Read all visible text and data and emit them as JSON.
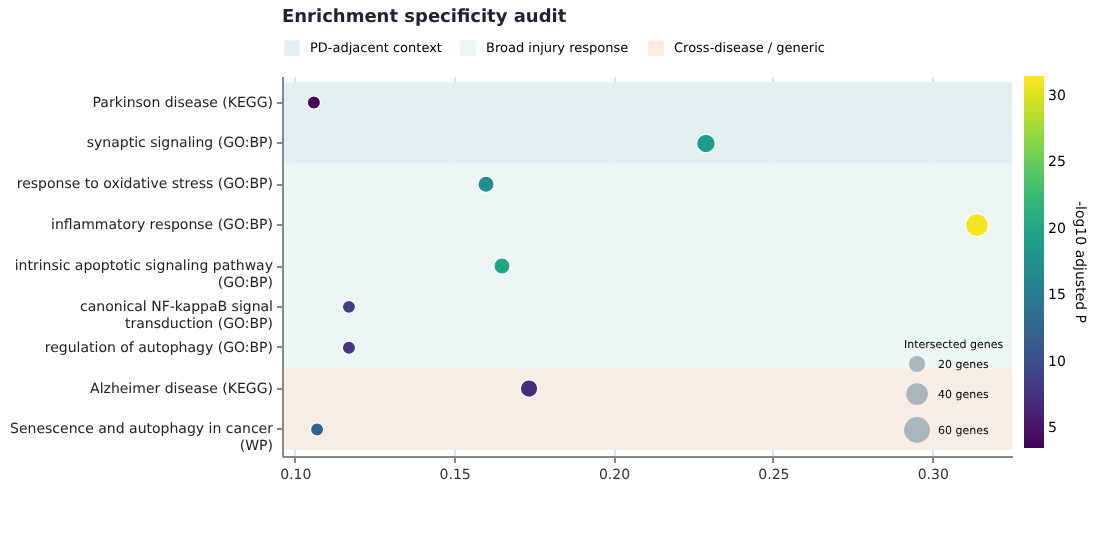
{
  "chart_data": {
    "type": "bubble",
    "title": "Enrichment specificity audit",
    "orientation": "horizontal",
    "categories": [
      "Parkinson disease (KEGG)",
      "synaptic signaling (GO:BP)",
      "response to oxidative stress (GO:BP)",
      "inflammatory response (GO:BP)",
      "intrinsic apoptotic signaling pathway (GO:BP)",
      "canonical NF-kappaB signal transduction (GO:BP)",
      "regulation of autophagy (GO:BP)",
      "Alzheimer disease (KEGG)",
      "Senescence and autophagy in cancer (WP)"
    ],
    "values": [
      0.106,
      0.229,
      0.16,
      0.314,
      0.165,
      0.117,
      0.117,
      0.1735,
      0.107
    ],
    "sizes": [
      20,
      40,
      30,
      60,
      30,
      20,
      20,
      35,
      20
    ],
    "cvalues": [
      4,
      19,
      17,
      31,
      20,
      9,
      8,
      7,
      12
    ],
    "size_legend": [
      {
        "value": 20,
        "label": "20 genes"
      },
      {
        "value": 40,
        "label": "40 genes"
      },
      {
        "value": 60,
        "label": "60 genes"
      }
    ],
    "legend_title": "Intersected genes",
    "clabel": "-log10 adjusted P",
    "clim": [
      3.5,
      31.5
    ],
    "cticks": [
      5,
      10,
      15,
      20,
      25,
      30
    ],
    "xlim": [
      0.096,
      0.325
    ],
    "xticks": [
      {
        "value": 0.1,
        "label": "0.10"
      },
      {
        "value": 0.15,
        "label": "0.15"
      },
      {
        "value": 0.2,
        "label": "0.20"
      },
      {
        "value": 0.25,
        "label": "0.25"
      },
      {
        "value": 0.3,
        "label": "0.30"
      }
    ],
    "bands": [
      {
        "axis": "y",
        "from": "Parkinson disease (KEGG)",
        "to": "synaptic signaling (GO:BP)",
        "label": "PD-adjacent context",
        "color": "#e4eff2"
      },
      {
        "axis": "y",
        "from": "response to oxidative stress (GO:BP)",
        "to": "regulation of autophagy (GO:BP)",
        "label": "Broad injury response",
        "color": "#eef5f5"
      },
      {
        "axis": "y",
        "from": "Alzheimer disease (KEGG)",
        "to": "Senescence and autophagy in cancer (WP)",
        "label": "Cross-disease / generic",
        "color": "#f8ede5"
      }
    ],
    "grid": "x",
    "legend": "top",
    "marker": "circle"
  }
}
